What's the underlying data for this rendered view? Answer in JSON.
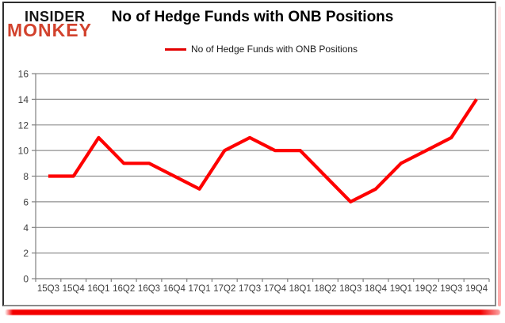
{
  "logo": {
    "line1": "INSIDER",
    "line2": "MONKEY"
  },
  "header": {
    "title": "No of Hedge Funds with ONB Positions"
  },
  "legend": {
    "label": "No of Hedge Funds with ONB Positions"
  },
  "colors": {
    "series_line": "#fe0000",
    "logo_red": "#d2422d",
    "bottom_shadow_red": "#f30000",
    "gridline_gray": "#8f8f8f",
    "axis_gray": "#808080",
    "tick_label_gray": "#3d3d3d"
  },
  "chart_data": {
    "type": "line",
    "title": "No of Hedge Funds with ONB Positions",
    "legend_entries": [
      "No of Hedge Funds with ONB Positions"
    ],
    "legend_position": "top",
    "grid": "horizontal",
    "xlabel": "",
    "ylabel": "",
    "ylim": [
      0,
      16
    ],
    "ytick_step": 2,
    "categories": [
      "15Q3",
      "15Q4",
      "16Q1",
      "16Q2",
      "16Q3",
      "16Q4",
      "17Q1",
      "17Q2",
      "17Q3",
      "17Q4",
      "18Q1",
      "18Q2",
      "18Q3",
      "18Q4",
      "19Q1",
      "19Q2",
      "19Q3",
      "19Q4"
    ],
    "series": [
      {
        "name": "No of Hedge Funds with ONB Positions",
        "values": [
          8,
          8,
          11,
          9,
          9,
          8,
          7,
          10,
          11,
          10,
          10,
          8,
          6,
          7,
          9,
          10,
          11,
          14
        ]
      }
    ],
    "line_color": "#fe0000"
  }
}
